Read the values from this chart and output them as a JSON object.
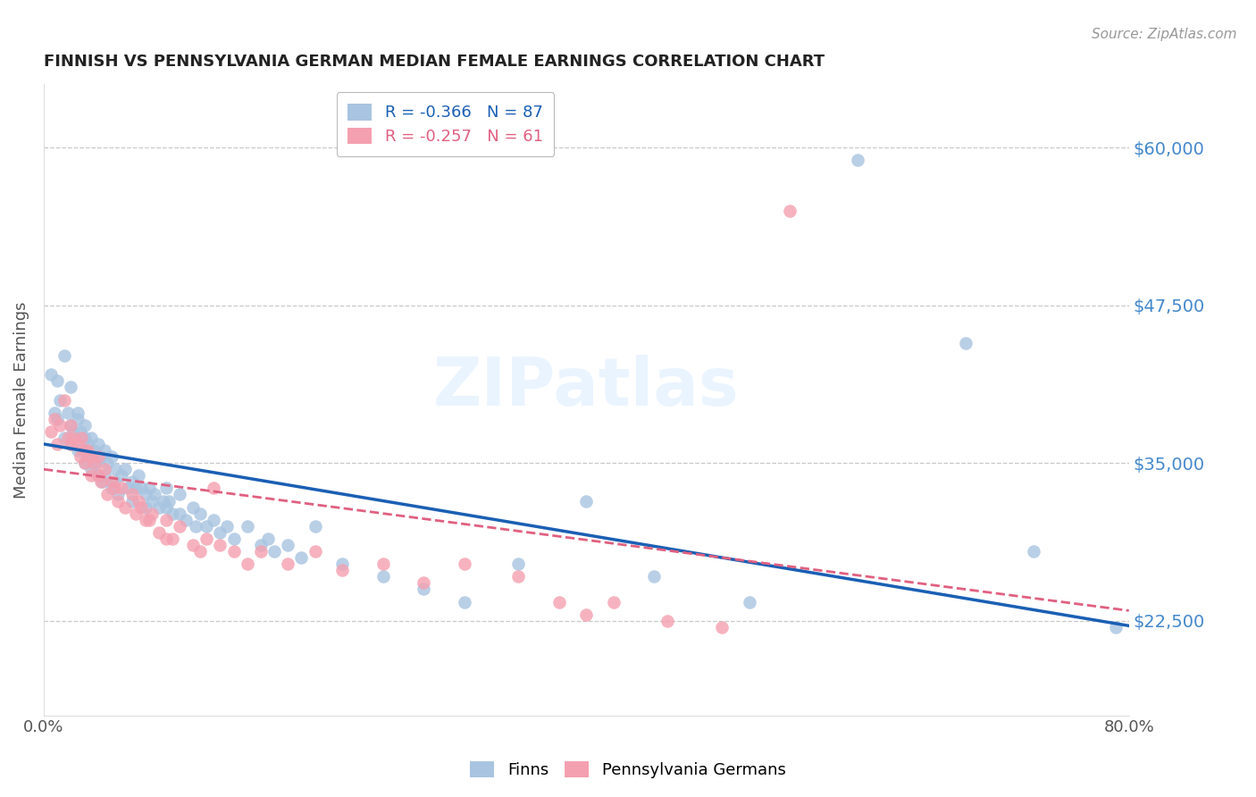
{
  "title": "FINNISH VS PENNSYLVANIA GERMAN MEDIAN FEMALE EARNINGS CORRELATION CHART",
  "source": "Source: ZipAtlas.com",
  "ylabel": "Median Female Earnings",
  "xlim": [
    0.0,
    0.8
  ],
  "ylim": [
    15000,
    65000
  ],
  "yticks": [
    22500,
    35000,
    47500,
    60000
  ],
  "ytick_labels": [
    "$22,500",
    "$35,000",
    "$47,500",
    "$60,000"
  ],
  "xticks": [
    0.0,
    0.2,
    0.4,
    0.6,
    0.8
  ],
  "finns_color": "#a8c4e0",
  "pa_german_color": "#f4a0b0",
  "trendline_finn_color": "#1a5fb4",
  "trendline_pa_color": "#e06080",
  "finn_R": -0.366,
  "finn_N": 87,
  "pa_R": -0.257,
  "pa_N": 61,
  "background_color": "#ffffff",
  "grid_color": "#c8c8c8",
  "right_axis_color": "#4488cc",
  "title_color": "#222222",
  "finn_intercept": 36500,
  "finn_slope": -18000,
  "pa_intercept": 34500,
  "pa_slope": -14000,
  "finns_x": [
    0.005,
    0.008,
    0.01,
    0.01,
    0.012,
    0.015,
    0.015,
    0.018,
    0.02,
    0.02,
    0.02,
    0.022,
    0.025,
    0.025,
    0.025,
    0.027,
    0.028,
    0.03,
    0.03,
    0.03,
    0.032,
    0.033,
    0.035,
    0.035,
    0.037,
    0.038,
    0.04,
    0.04,
    0.042,
    0.043,
    0.045,
    0.045,
    0.047,
    0.05,
    0.05,
    0.052,
    0.053,
    0.055,
    0.057,
    0.06,
    0.062,
    0.065,
    0.065,
    0.068,
    0.07,
    0.072,
    0.075,
    0.075,
    0.078,
    0.08,
    0.082,
    0.085,
    0.088,
    0.09,
    0.09,
    0.092,
    0.095,
    0.1,
    0.1,
    0.105,
    0.11,
    0.112,
    0.115,
    0.12,
    0.125,
    0.13,
    0.135,
    0.14,
    0.15,
    0.16,
    0.165,
    0.17,
    0.18,
    0.19,
    0.2,
    0.22,
    0.25,
    0.28,
    0.31,
    0.35,
    0.4,
    0.45,
    0.52,
    0.6,
    0.68,
    0.73,
    0.79
  ],
  "finns_y": [
    42000,
    39000,
    41500,
    38500,
    40000,
    43500,
    37000,
    39000,
    38000,
    36500,
    41000,
    37500,
    39000,
    36000,
    38500,
    37500,
    36000,
    38000,
    35000,
    37000,
    36500,
    35500,
    37000,
    34500,
    36000,
    35000,
    36500,
    34000,
    35500,
    33500,
    36000,
    34000,
    35000,
    33000,
    35500,
    33500,
    34500,
    32500,
    34000,
    34500,
    33000,
    33500,
    32000,
    33000,
    34000,
    33000,
    32500,
    31500,
    33000,
    32000,
    32500,
    31500,
    32000,
    33000,
    31500,
    32000,
    31000,
    32500,
    31000,
    30500,
    31500,
    30000,
    31000,
    30000,
    30500,
    29500,
    30000,
    29000,
    30000,
    28500,
    29000,
    28000,
    28500,
    27500,
    30000,
    27000,
    26000,
    25000,
    24000,
    27000,
    32000,
    26000,
    24000,
    59000,
    44500,
    28000,
    22000
  ],
  "pa_x": [
    0.005,
    0.008,
    0.01,
    0.012,
    0.015,
    0.018,
    0.02,
    0.02,
    0.022,
    0.025,
    0.027,
    0.028,
    0.03,
    0.03,
    0.032,
    0.035,
    0.035,
    0.037,
    0.04,
    0.04,
    0.042,
    0.045,
    0.047,
    0.05,
    0.052,
    0.055,
    0.057,
    0.06,
    0.065,
    0.068,
    0.07,
    0.072,
    0.075,
    0.078,
    0.08,
    0.085,
    0.09,
    0.09,
    0.095,
    0.1,
    0.11,
    0.115,
    0.12,
    0.125,
    0.13,
    0.14,
    0.15,
    0.16,
    0.18,
    0.2,
    0.22,
    0.25,
    0.28,
    0.31,
    0.35,
    0.38,
    0.4,
    0.42,
    0.46,
    0.5,
    0.55
  ],
  "pa_y": [
    37500,
    38500,
    36500,
    38000,
    40000,
    37000,
    36500,
    38000,
    37000,
    36500,
    35500,
    37000,
    36000,
    35000,
    36000,
    35500,
    34000,
    35000,
    35500,
    34000,
    33500,
    34500,
    32500,
    33500,
    33000,
    32000,
    33000,
    31500,
    32500,
    31000,
    32000,
    31500,
    30500,
    30500,
    31000,
    29500,
    30500,
    29000,
    29000,
    30000,
    28500,
    28000,
    29000,
    33000,
    28500,
    28000,
    27000,
    28000,
    27000,
    28000,
    26500,
    27000,
    25500,
    27000,
    26000,
    24000,
    23000,
    24000,
    22500,
    22000,
    55000
  ]
}
